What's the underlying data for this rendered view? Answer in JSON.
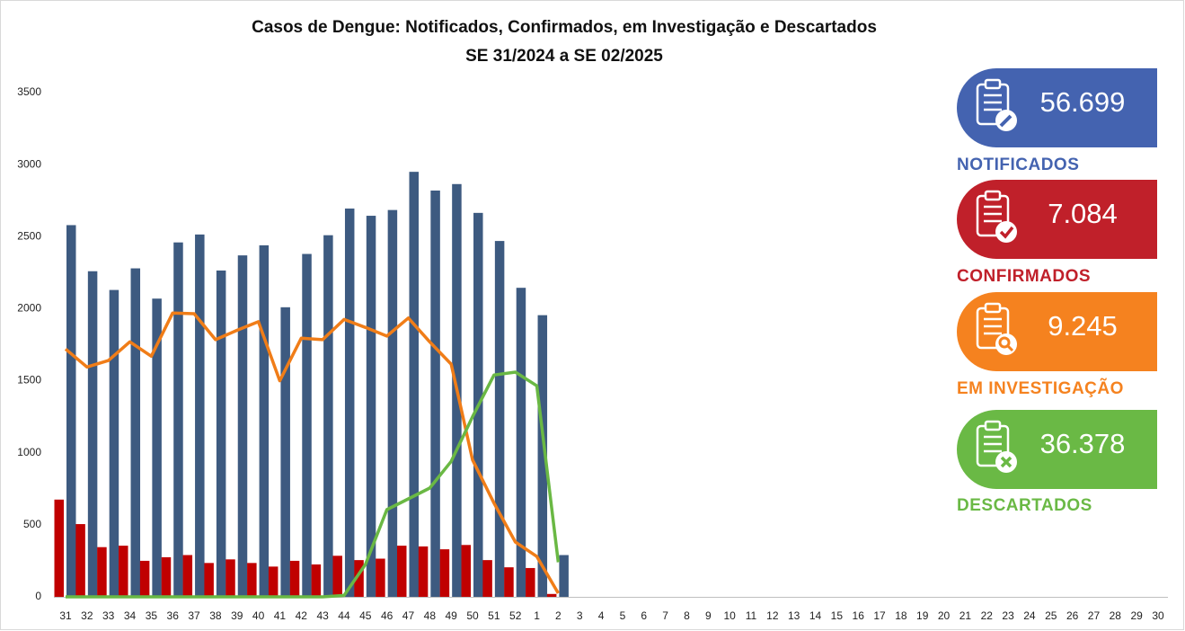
{
  "chart_data": {
    "type": "bar-line",
    "title": "Casos de Dengue: Notificados, Confirmados, em Investigação e Descartados",
    "subtitle": "SE 31/2024 a SE 02/2025",
    "categories": [
      "31",
      "32",
      "33",
      "34",
      "35",
      "36",
      "37",
      "38",
      "39",
      "40",
      "41",
      "42",
      "43",
      "44",
      "45",
      "46",
      "47",
      "48",
      "49",
      "50",
      "51",
      "52",
      "1",
      "2",
      "3",
      "4",
      "5",
      "6",
      "7",
      "8",
      "9",
      "10",
      "11",
      "12",
      "13",
      "14",
      "15",
      "16",
      "17",
      "18",
      "19",
      "20",
      "21",
      "22",
      "23",
      "24",
      "25",
      "26",
      "27",
      "28",
      "29",
      "30"
    ],
    "ylim": [
      0,
      3500
    ],
    "yticks": [
      0,
      500,
      1000,
      1500,
      2000,
      2500,
      3000,
      3500
    ],
    "series": [
      {
        "name": "NOTIFICADOS",
        "total": "56.699",
        "mark": "bar",
        "color": "#3d5a80",
        "panel_color": "#4463b0",
        "values": [
          2580,
          2260,
          2130,
          2280,
          2070,
          2460,
          2515,
          2265,
          2370,
          2440,
          2010,
          2380,
          2510,
          2695,
          2645,
          2685,
          2950,
          2820,
          2865,
          2665,
          2470,
          2145,
          1955,
          290,
          null,
          null,
          null,
          null,
          null,
          null,
          null,
          null,
          null,
          null,
          null,
          null,
          null,
          null,
          null,
          null,
          null,
          null,
          null,
          null,
          null,
          null,
          null,
          null,
          null,
          null,
          null,
          null
        ]
      },
      {
        "name": "CONFIRMADOS",
        "total": "7.084",
        "mark": "bar",
        "color": "#c00000",
        "panel_color": "#c0202a",
        "values": [
          675,
          505,
          345,
          355,
          250,
          275,
          290,
          235,
          260,
          235,
          210,
          250,
          225,
          285,
          255,
          265,
          355,
          350,
          330,
          360,
          255,
          205,
          200,
          20,
          null,
          null,
          null,
          null,
          null,
          null,
          null,
          null,
          null,
          null,
          null,
          null,
          null,
          null,
          null,
          null,
          null,
          null,
          null,
          null,
          null,
          null,
          null,
          null,
          null,
          null,
          null,
          null
        ]
      },
      {
        "name": "EM INVESTIGAÇÃO",
        "total": "9.245",
        "mark": "line",
        "color": "#f07d18",
        "panel_color": "#f5821f",
        "values": [
          1720,
          1595,
          1640,
          1770,
          1670,
          1970,
          1965,
          1785,
          1850,
          1910,
          1500,
          1795,
          1785,
          1925,
          1870,
          1810,
          1935,
          1770,
          1615,
          950,
          650,
          380,
          280,
          25,
          null,
          null,
          null,
          null,
          null,
          null,
          null,
          null,
          null,
          null,
          null,
          null,
          null,
          null,
          null,
          null,
          null,
          null,
          null,
          null,
          null,
          null,
          null,
          null,
          null,
          null,
          null,
          null
        ]
      },
      {
        "name": "DESCARTADOS",
        "total": "36.378",
        "mark": "line",
        "color": "#6ab844",
        "panel_color": "#6ab945",
        "values": [
          0,
          0,
          0,
          0,
          0,
          0,
          0,
          0,
          0,
          0,
          0,
          0,
          0,
          10,
          225,
          605,
          680,
          755,
          940,
          1250,
          1540,
          1560,
          1465,
          240,
          null,
          null,
          null,
          null,
          null,
          null,
          null,
          null,
          null,
          null,
          null,
          null,
          null,
          null,
          null,
          null,
          null,
          null,
          null,
          null,
          null,
          null,
          null,
          null,
          null,
          null,
          null,
          null
        ]
      }
    ]
  }
}
